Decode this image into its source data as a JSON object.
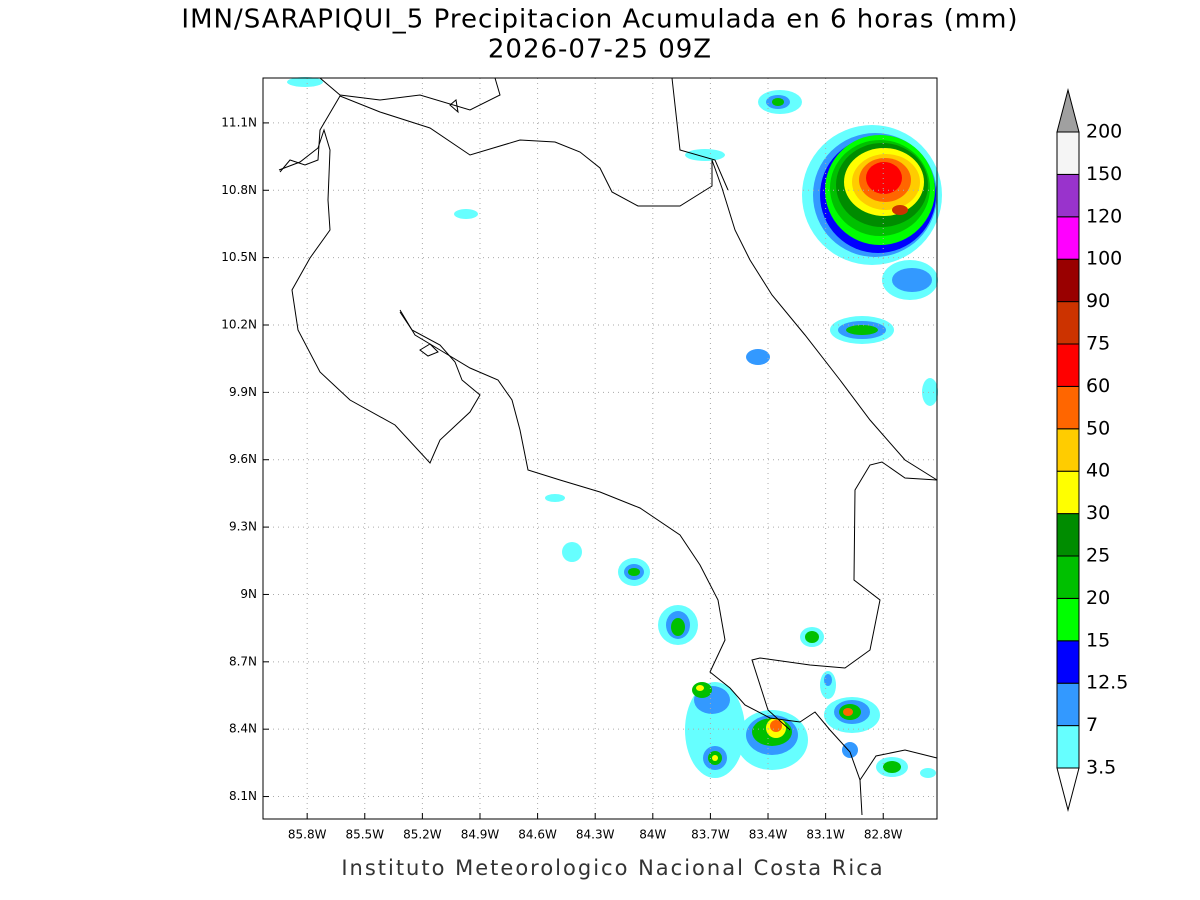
{
  "title": "IMN/SARAPIQUI_5 Precipitacion Acumulada en 6 horas (mm)",
  "subtitle": "2026-07-25 09Z",
  "map": {
    "lonlim": [
      -86.03,
      -82.52
    ],
    "latlim": [
      8.0,
      11.3
    ],
    "lon_ticks": [
      {
        "value": -85.8,
        "label": "85.8W"
      },
      {
        "value": -85.5,
        "label": "85.5W"
      },
      {
        "value": -85.2,
        "label": "85.2W"
      },
      {
        "value": -84.9,
        "label": "84.9W"
      },
      {
        "value": -84.6,
        "label": "84.6W"
      },
      {
        "value": -84.3,
        "label": "84.3W"
      },
      {
        "value": -84.0,
        "label": "84W"
      },
      {
        "value": -83.7,
        "label": "83.7W"
      },
      {
        "value": -83.4,
        "label": "83.4W"
      },
      {
        "value": -83.1,
        "label": "83.1W"
      },
      {
        "value": -82.8,
        "label": "82.8W"
      }
    ],
    "lat_ticks": [
      {
        "value": 11.1,
        "label": "11.1N"
      },
      {
        "value": 10.8,
        "label": "10.8N"
      },
      {
        "value": 10.5,
        "label": "10.5N"
      },
      {
        "value": 10.2,
        "label": "10.2N"
      },
      {
        "value": 9.9,
        "label": "9.9N"
      },
      {
        "value": 9.6,
        "label": "9.6N"
      },
      {
        "value": 9.3,
        "label": "9.3N"
      },
      {
        "value": 9.0,
        "label": "9N"
      },
      {
        "value": 8.7,
        "label": "8.7N"
      },
      {
        "value": 8.4,
        "label": "8.4N"
      },
      {
        "value": 8.1,
        "label": "8.1N"
      }
    ]
  },
  "colorbar": {
    "levels": [
      3.5,
      7,
      12.5,
      15,
      20,
      25,
      30,
      40,
      50,
      60,
      75,
      90,
      100,
      120,
      150,
      200
    ],
    "colors": [
      "#66ffff",
      "#3399ff",
      "#0000ff",
      "#00ff00",
      "#00c000",
      "#008c00",
      "#ffff00",
      "#ffcc00",
      "#ff6600",
      "#ff0000",
      "#cc3300",
      "#990000",
      "#ff00ff",
      "#9933cc",
      "#f5f5f5"
    ],
    "under_color": "#ffffff",
    "over_color": "#a0a0a0"
  },
  "footer": "Instituto Meteorologico Nacional Costa Rica"
}
